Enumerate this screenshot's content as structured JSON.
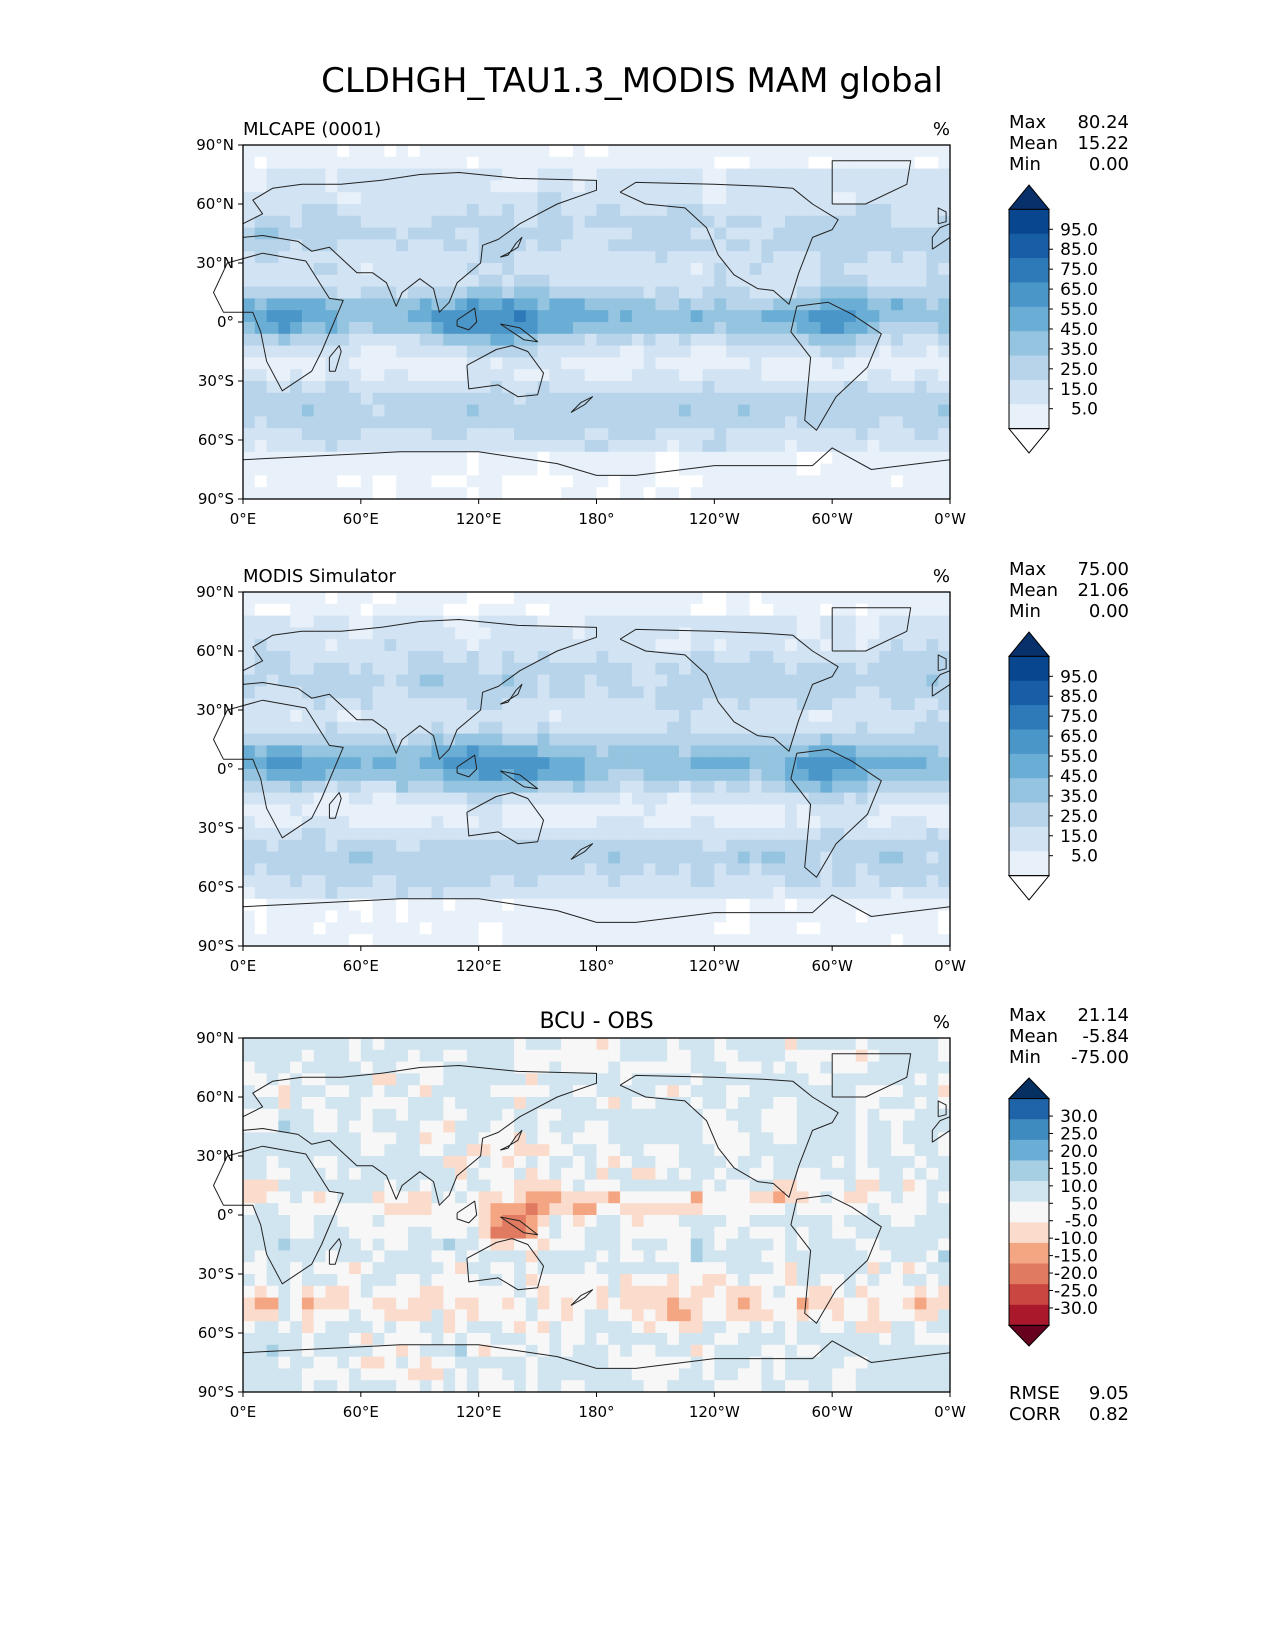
{
  "figure": {
    "title": "CLDHGH_TAU1.3_MODIS MAM global"
  },
  "chart_data": [
    {
      "type": "heatmap",
      "panel_id": "test",
      "title_left": "MLCAPE (0001)",
      "title_center": "",
      "units": "%",
      "xticks": [
        "0°E",
        "60°E",
        "120°E",
        "180°",
        "120°W",
        "60°W",
        "0°W"
      ],
      "yticks": [
        "90°N",
        "60°N",
        "30°N",
        "0°",
        "30°S",
        "60°S",
        "90°S"
      ],
      "xlim": [
        0,
        360
      ],
      "ylim": [
        -90,
        90
      ],
      "stats": [
        {
          "label": "Max",
          "value": "80.24"
        },
        {
          "label": "Mean",
          "value": "15.22"
        },
        {
          "label": "Min",
          "value": "0.00"
        }
      ],
      "colorbar": {
        "labels": [
          "95.0",
          "85.0",
          "75.0",
          "65.0",
          "55.0",
          "45.0",
          "35.0",
          "25.0",
          "15.0",
          "5.0"
        ],
        "colors": [
          "#08306b",
          "#08468f",
          "#175ea6",
          "#2e7ab9",
          "#4a96c9",
          "#6aaed6",
          "#94c4df",
          "#b7d4ea",
          "#d2e3f3",
          "#e8f1fa",
          "#ffffff"
        ],
        "extend": "both"
      }
    },
    {
      "type": "heatmap",
      "panel_id": "reference",
      "title_left": "MODIS Simulator",
      "title_center": "",
      "units": "%",
      "xticks": [
        "0°E",
        "60°E",
        "120°E",
        "180°",
        "120°W",
        "60°W",
        "0°W"
      ],
      "yticks": [
        "90°N",
        "60°N",
        "30°N",
        "0°",
        "30°S",
        "60°S",
        "90°S"
      ],
      "xlim": [
        0,
        360
      ],
      "ylim": [
        -90,
        90
      ],
      "stats": [
        {
          "label": "Max",
          "value": "75.00"
        },
        {
          "label": "Mean",
          "value": "21.06"
        },
        {
          "label": "Min",
          "value": "0.00"
        }
      ],
      "colorbar": {
        "labels": [
          "95.0",
          "85.0",
          "75.0",
          "65.0",
          "55.0",
          "45.0",
          "35.0",
          "25.0",
          "15.0",
          "5.0"
        ],
        "colors": [
          "#08306b",
          "#08468f",
          "#175ea6",
          "#2e7ab9",
          "#4a96c9",
          "#6aaed6",
          "#94c4df",
          "#b7d4ea",
          "#d2e3f3",
          "#e8f1fa",
          "#ffffff"
        ],
        "extend": "both"
      }
    },
    {
      "type": "heatmap",
      "panel_id": "difference",
      "title_left": "",
      "title_center": "BCU - OBS",
      "units": "%",
      "xticks": [
        "0°E",
        "60°E",
        "120°E",
        "180°",
        "120°W",
        "60°W",
        "0°W"
      ],
      "yticks": [
        "90°N",
        "60°N",
        "30°N",
        "0°",
        "30°S",
        "60°S",
        "90°S"
      ],
      "xlim": [
        0,
        360
      ],
      "ylim": [
        -90,
        90
      ],
      "stats": [
        {
          "label": "Max",
          "value": "21.14"
        },
        {
          "label": "Mean",
          "value": "-5.84"
        },
        {
          "label": "Min",
          "value": "-75.00"
        }
      ],
      "metrics": [
        {
          "label": "RMSE",
          "value": "9.05"
        },
        {
          "label": "CORR",
          "value": "0.82"
        }
      ],
      "colorbar": {
        "labels": [
          "30.0",
          "25.0",
          "20.0",
          "15.0",
          "10.0",
          "5.0",
          "-5.0",
          "-10.0",
          "-15.0",
          "-20.0",
          "-25.0",
          "-30.0"
        ],
        "colors": [
          "#053061",
          "#1f63a8",
          "#3d8bbf",
          "#6aaed6",
          "#a6cfe4",
          "#d1e5f0",
          "#f7f7f7",
          "#fbdccc",
          "#f4a582",
          "#e07a60",
          "#ca4741",
          "#a9192b",
          "#67001f"
        ],
        "extend": "both"
      }
    }
  ]
}
